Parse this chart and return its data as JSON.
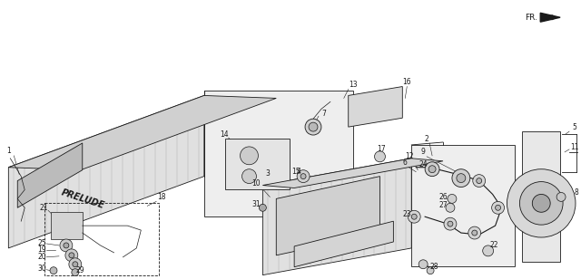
{
  "figsize": [
    6.4,
    3.08
  ],
  "dpi": 100,
  "bg": "#ffffff",
  "lc": "#1a1a1a",
  "lw": 0.6,
  "gray_fill": "#e8e8e8",
  "dark_fill": "#c0c0c0",
  "hatch_fill": "#d4d4d4"
}
